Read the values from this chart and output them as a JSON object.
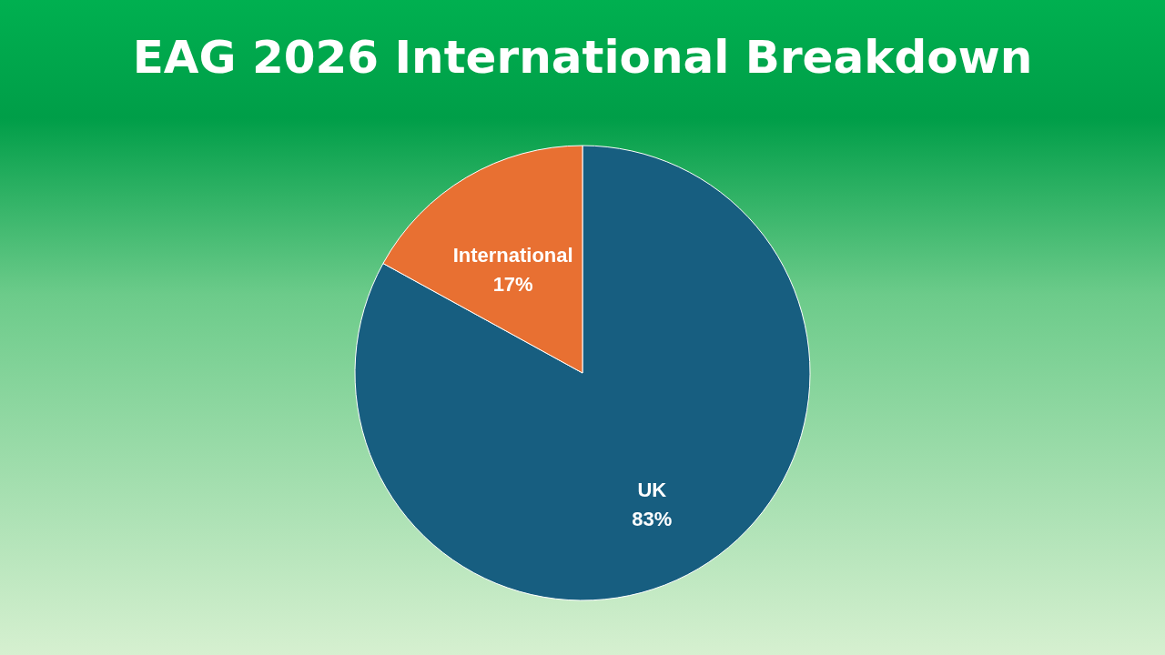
{
  "chart_data": {
    "type": "pie",
    "title": "EAG 2026 International Breakdown",
    "categories": [
      "UK",
      "International"
    ],
    "values": [
      83,
      17
    ],
    "colors": [
      "#175e80",
      "#e87032"
    ],
    "value_labels": [
      "83%",
      "17%"
    ],
    "legend": false
  }
}
